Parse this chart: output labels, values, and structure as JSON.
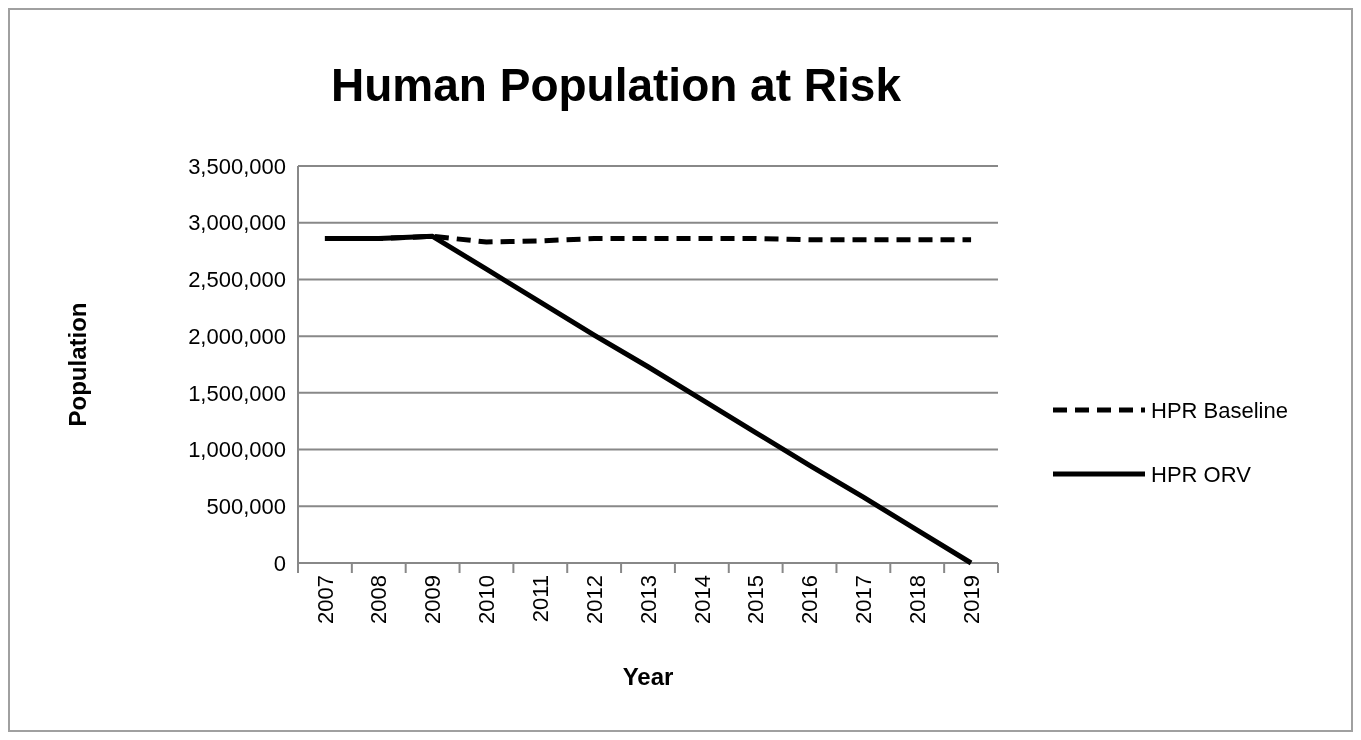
{
  "chart_data": {
    "type": "line",
    "title": "Human Population at Risk",
    "xlabel": "Year",
    "ylabel": "Population",
    "categories": [
      "2007",
      "2008",
      "2009",
      "2010",
      "2011",
      "2012",
      "2013",
      "2014",
      "2015",
      "2016",
      "2017",
      "2018",
      "2019"
    ],
    "series": [
      {
        "name": "HPR Baseline",
        "color": "#000000",
        "line_style": "dashed",
        "values": [
          2860000,
          2860000,
          2880000,
          2830000,
          2840000,
          2860000,
          2860000,
          2860000,
          2860000,
          2850000,
          2850000,
          2850000,
          2850000
        ]
      },
      {
        "name": "HPR ORV",
        "color": "#000000",
        "line_style": "solid",
        "values": [
          2860000,
          2860000,
          2880000,
          2590000,
          2300000,
          2010000,
          1730000,
          1440000,
          1150000,
          860000,
          580000,
          290000,
          0
        ]
      }
    ],
    "ylim": [
      0,
      3500000
    ],
    "yticks": [
      {
        "value": 0,
        "label": "0"
      },
      {
        "value": 500000,
        "label": "500,000"
      },
      {
        "value": 1000000,
        "label": "1,000,000"
      },
      {
        "value": 1500000,
        "label": "1,500,000"
      },
      {
        "value": 2000000,
        "label": "2,000,000"
      },
      {
        "value": 2500000,
        "label": "2,500,000"
      },
      {
        "value": 3000000,
        "label": "3,000,000"
      },
      {
        "value": 3500000,
        "label": "3,500,000"
      }
    ],
    "grid": "y",
    "legend": "right"
  }
}
